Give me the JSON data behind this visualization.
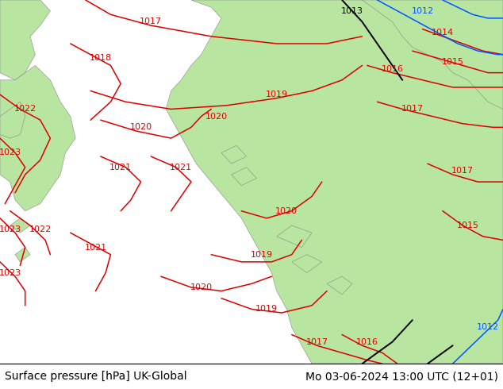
{
  "title_left": "Surface pressure [hPa] UK-Global",
  "title_right": "Mo 03-06-2024 13:00 UTC (12+01)",
  "land_color": "#b8e6a0",
  "sea_color": "#c8c8c8",
  "contour_red": "#dd0000",
  "contour_blue": "#0055ff",
  "contour_black": "#000000",
  "footer_fontsize": 10,
  "figsize": [
    6.34,
    4.9
  ],
  "dpi": 100,
  "land_edge": "#888888",
  "footer_bg": "#ffffff"
}
